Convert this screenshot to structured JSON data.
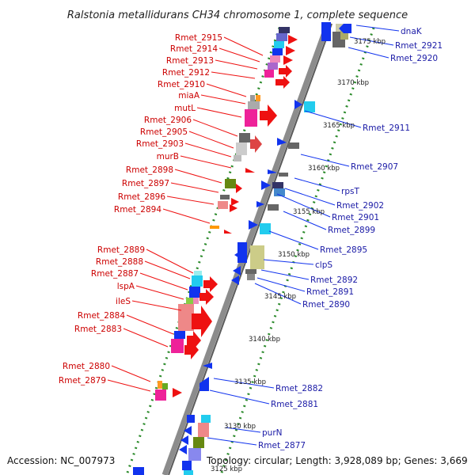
{
  "title": "Ralstonia metallidurans CH34 chromosome 1, complete sequence",
  "footer": {
    "accession": "Accession: NC_007973",
    "summary": "Topology: circular; Length: 3,928,089 bp; Genes: 3,669"
  },
  "colors": {
    "forward_gene": "#ee1111",
    "reverse_gene": "#1133ee",
    "left_label": "#cc0000",
    "right_label": "#1a1aa6",
    "backbone": "#8c8c8c",
    "tick_dots": "#2a8a2a"
  },
  "scale_labels": [
    "3125 kbp",
    "3130 kbp",
    "3135 kbp",
    "3140 kbp",
    "3145 kbp",
    "3150 kbp",
    "3155 kbp",
    "3160 kbp",
    "3165 kbp",
    "3170 kbp",
    "3175 kbp"
  ],
  "left_labels": [
    "Rmet_2915",
    "Rmet_2914",
    "Rmet_2913",
    "Rmet_2912",
    "Rmet_2910",
    "miaA",
    "mutL",
    "Rmet_2906",
    "Rmet_2905",
    "Rmet_2903",
    "murB",
    "Rmet_2898",
    "Rmet_2897",
    "Rmet_2896",
    "Rmet_2894",
    "Rmet_2889",
    "Rmet_2888",
    "Rmet_2887",
    "lspA",
    "ileS",
    "Rmet_2884",
    "Rmet_2883",
    "Rmet_2880",
    "Rmet_2879"
  ],
  "right_labels": [
    "dnaK",
    "Rmet_2921",
    "Rmet_2920",
    "Rmet_2911",
    "Rmet_2907",
    "rpsT",
    "Rmet_2902",
    "Rmet_2901",
    "Rmet_2899",
    "Rmet_2895",
    "clpS",
    "Rmet_2892",
    "Rmet_2891",
    "Rmet_2890",
    "Rmet_2882",
    "Rmet_2881",
    "purN",
    "Rmet_2877"
  ]
}
